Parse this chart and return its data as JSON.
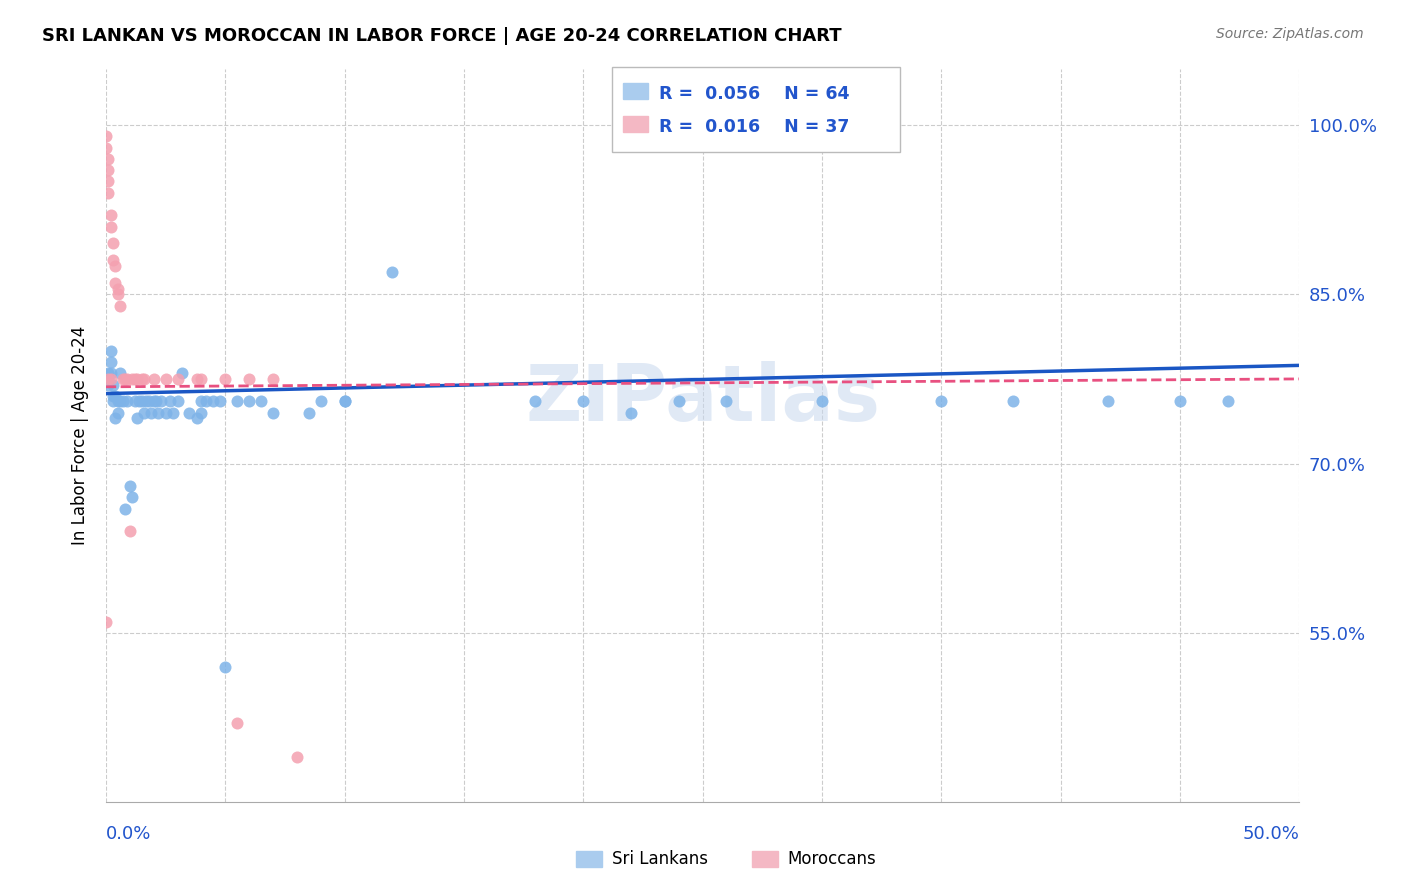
{
  "title": "SRI LANKAN VS MOROCCAN IN LABOR FORCE | AGE 20-24 CORRELATION CHART",
  "source": "Source: ZipAtlas.com",
  "ylabel": "In Labor Force | Age 20-24",
  "ytick_values": [
    0.55,
    0.7,
    0.85,
    1.0
  ],
  "ytick_labels": [
    "55.0%",
    "70.0%",
    "85.0%",
    "100.0%"
  ],
  "xlim": [
    0.0,
    0.5
  ],
  "ylim": [
    0.4,
    1.05
  ],
  "legend_sri_r": "0.056",
  "legend_sri_n": "64",
  "legend_mor_r": "0.016",
  "legend_mor_n": "37",
  "sri_color": "#7eb3e8",
  "mor_color": "#f4a0b0",
  "sri_line_color": "#1a56c4",
  "mor_line_color": "#e85080",
  "watermark": "ZIPatlas",
  "sri_x": [
    0.001,
    0.001,
    0.002,
    0.002,
    0.002,
    0.003,
    0.003,
    0.003,
    0.004,
    0.004,
    0.005,
    0.005,
    0.006,
    0.006,
    0.007,
    0.008,
    0.009,
    0.01,
    0.011,
    0.012,
    0.013,
    0.014,
    0.015,
    0.016,
    0.017,
    0.018,
    0.019,
    0.02,
    0.021,
    0.022,
    0.023,
    0.025,
    0.027,
    0.028,
    0.03,
    0.032,
    0.035,
    0.038,
    0.04,
    0.04,
    0.042,
    0.045,
    0.048,
    0.05,
    0.055,
    0.06,
    0.065,
    0.07,
    0.085,
    0.09,
    0.1,
    0.1,
    0.12,
    0.18,
    0.2,
    0.22,
    0.24,
    0.26,
    0.3,
    0.35,
    0.38,
    0.42,
    0.45,
    0.47
  ],
  "sri_y": [
    0.78,
    0.77,
    0.8,
    0.79,
    0.78,
    0.77,
    0.76,
    0.755,
    0.76,
    0.74,
    0.755,
    0.745,
    0.755,
    0.78,
    0.755,
    0.66,
    0.755,
    0.68,
    0.67,
    0.755,
    0.74,
    0.755,
    0.755,
    0.745,
    0.755,
    0.755,
    0.745,
    0.755,
    0.755,
    0.745,
    0.755,
    0.745,
    0.755,
    0.745,
    0.755,
    0.78,
    0.745,
    0.74,
    0.745,
    0.755,
    0.755,
    0.755,
    0.755,
    0.52,
    0.755,
    0.755,
    0.755,
    0.745,
    0.745,
    0.755,
    0.755,
    0.755,
    0.87,
    0.755,
    0.755,
    0.745,
    0.755,
    0.755,
    0.755,
    0.755,
    0.755,
    0.755,
    0.755,
    0.755
  ],
  "mor_x": [
    0.0,
    0.0,
    0.0,
    0.001,
    0.001,
    0.001,
    0.001,
    0.001,
    0.002,
    0.002,
    0.002,
    0.003,
    0.003,
    0.004,
    0.004,
    0.005,
    0.005,
    0.006,
    0.007,
    0.008,
    0.009,
    0.01,
    0.011,
    0.012,
    0.013,
    0.015,
    0.016,
    0.02,
    0.025,
    0.03,
    0.038,
    0.04,
    0.05,
    0.055,
    0.06,
    0.07,
    0.08
  ],
  "mor_y": [
    0.99,
    0.98,
    0.56,
    0.97,
    0.96,
    0.95,
    0.94,
    0.775,
    0.92,
    0.91,
    0.775,
    0.895,
    0.88,
    0.875,
    0.86,
    0.855,
    0.85,
    0.84,
    0.775,
    0.775,
    0.775,
    0.64,
    0.775,
    0.775,
    0.775,
    0.775,
    0.775,
    0.775,
    0.775,
    0.775,
    0.775,
    0.775,
    0.775,
    0.47,
    0.775,
    0.775,
    0.44
  ],
  "sri_trendline_x": [
    0.0,
    0.5
  ],
  "sri_trendline_y": [
    0.762,
    0.787
  ],
  "mor_trendline_x": [
    0.0,
    0.5
  ],
  "mor_trendline_y": [
    0.768,
    0.775
  ]
}
